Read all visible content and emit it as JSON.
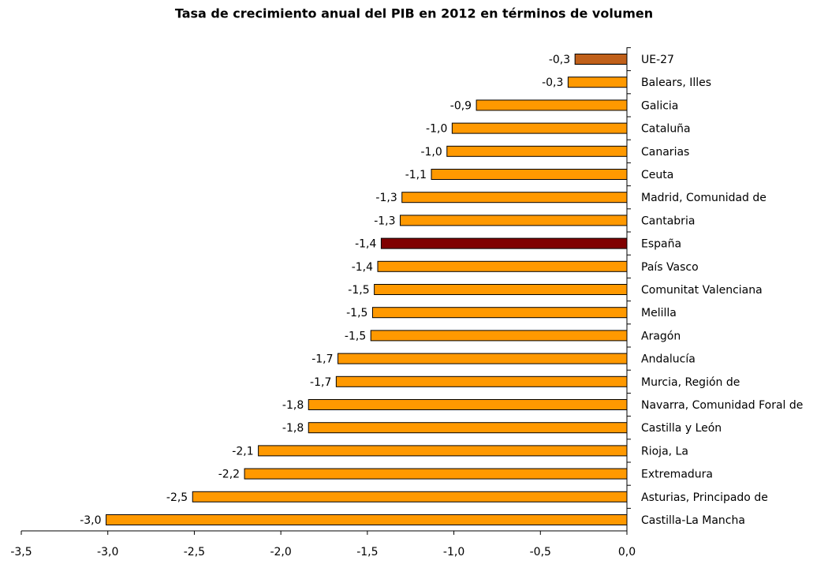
{
  "chart_data": {
    "type": "bar",
    "orientation": "horizontal",
    "title": "Tasa de crecimiento anual del PIB en 2012 en términos de volumen",
    "categories": [
      "UE-27",
      "Balears, Illes",
      "Galicia",
      "Cataluña",
      "Canarias",
      "Ceuta",
      "Madrid, Comunidad de",
      "Cantabria",
      "España",
      "País Vasco",
      "Comunitat Valenciana",
      "Melilla",
      "Aragón",
      "Andalucía",
      "Murcia, Región de",
      "Navarra, Comunidad  Foral de",
      "Castilla y León",
      "Rioja, La",
      "Extremadura",
      "Asturias, Principado de",
      "Castilla-La Mancha"
    ],
    "values": [
      -0.3,
      -0.34,
      -0.87,
      -1.01,
      -1.04,
      -1.13,
      -1.3,
      -1.31,
      -1.42,
      -1.44,
      -1.46,
      -1.47,
      -1.48,
      -1.67,
      -1.68,
      -1.84,
      -1.84,
      -2.13,
      -2.21,
      -2.51,
      -3.01
    ],
    "value_labels": [
      "-0,3",
      "-0,3",
      "-0,9",
      "-1,0",
      "-1,0",
      "-1,1",
      "-1,3",
      "-1,3",
      "-1,4",
      "-1,4",
      "-1,5",
      "-1,5",
      "-1,5",
      "-1,7",
      "-1,7",
      "-1,8",
      "-1,8",
      "-2,1",
      "-2,2",
      "-2,5",
      "-3,0"
    ],
    "colors": [
      "#c0601a",
      "#ff9900",
      "#ff9900",
      "#ff9900",
      "#ff9900",
      "#ff9900",
      "#ff9900",
      "#ff9900",
      "#800000",
      "#ff9900",
      "#ff9900",
      "#ff9900",
      "#ff9900",
      "#ff9900",
      "#ff9900",
      "#ff9900",
      "#ff9900",
      "#ff9900",
      "#ff9900",
      "#ff9900",
      "#ff9900"
    ],
    "xlim": [
      -3.5,
      0
    ],
    "xticks": [
      {
        "value": -3.5,
        "label": "-3,5"
      },
      {
        "value": -3,
        "label": "-3,0"
      },
      {
        "value": -2.5,
        "label": "-2,5"
      },
      {
        "value": -2,
        "label": "-2,0"
      },
      {
        "value": -1.5,
        "label": "-1,5"
      },
      {
        "value": -1,
        "label": "-1,0"
      },
      {
        "value": -0.5,
        "label": "-0,5"
      },
      {
        "value": 0,
        "label": "0,0"
      }
    ]
  }
}
